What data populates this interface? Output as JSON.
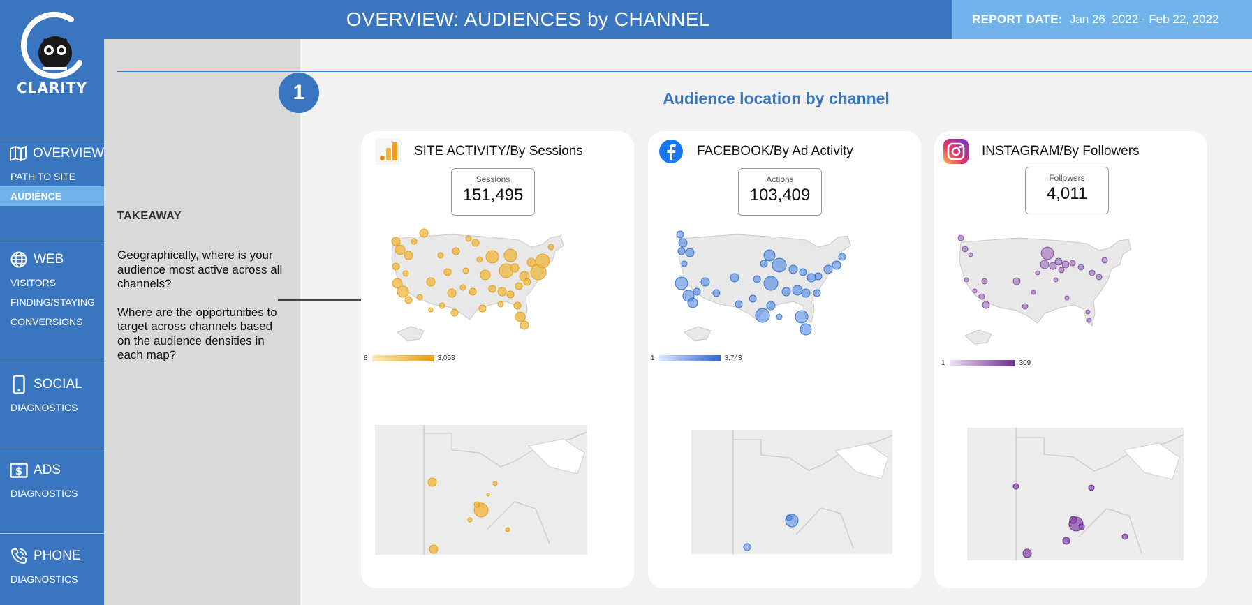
{
  "app": {
    "logo_text": "CLARITY"
  },
  "header": {
    "title": "OVERVIEW: AUDIENCES by CHANNEL"
  },
  "report_date": {
    "label": "REPORT DATE:",
    "value": "Jan 26, 2022 - Feb 22, 2022"
  },
  "sidebar": {
    "overview": {
      "label": "OVERVIEW",
      "icon": "map-icon",
      "items": [
        "PATH TO SITE",
        "AUDIENCE"
      ],
      "active_item": "AUDIENCE"
    },
    "web": {
      "label": "WEB",
      "icon": "globe-icon",
      "items": [
        "VISITORS",
        "FINDING/STAYING",
        "CONVERSIONS"
      ]
    },
    "social": {
      "label": "SOCIAL",
      "icon": "phone-icon",
      "items": [
        "DIAGNOSTICS"
      ]
    },
    "ads": {
      "label": "ADS",
      "icon": "dollar-icon",
      "items": [
        "DIAGNOSTICS"
      ]
    },
    "phone": {
      "label": "PHONE",
      "icon": "phone-call-icon",
      "items": [
        "DIAGNOSTICS"
      ]
    }
  },
  "takeaway": {
    "title": "TAKEAWAY",
    "paragraph1": "Geographically, where is your audience most active across all channels?",
    "paragraph2": "Where are the opportunities to target across channels based on the audience densities in each map?"
  },
  "step_number": "1",
  "section_title": "Audience location by channel",
  "cards": [
    {
      "title": "SITE ACTIVITY/By Sessions",
      "icon": "google-analytics-icon",
      "kpi_label": "Sessions",
      "kpi_value": "151,495",
      "legend_min": "8",
      "legend_max": "3,053",
      "color": "#f0b73d"
    },
    {
      "title": "FACEBOOK/By Ad Activity",
      "icon": "facebook-icon",
      "kpi_label": "Actions",
      "kpi_value": "103,409",
      "legend_min": "1",
      "legend_max": "3,743",
      "color": "#3d7de0"
    },
    {
      "title": "INSTAGRAM/By Followers",
      "icon": "instagram-icon",
      "kpi_label": "Followers",
      "kpi_value": "4,011",
      "legend_min": "1",
      "legend_max": "309",
      "color": "#8a4fb0"
    }
  ]
}
